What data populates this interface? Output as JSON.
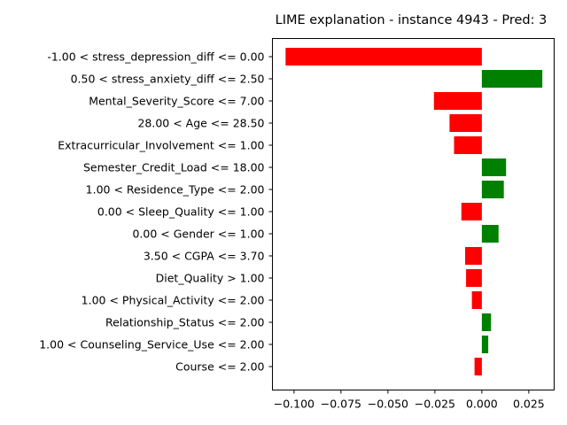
{
  "chart_data": {
    "type": "bar",
    "orientation": "horizontal",
    "title": "LIME explanation - instance 4943 - Pred: 3",
    "xlabel": "",
    "ylabel": "",
    "xlim": [
      -0.1115,
      0.0385
    ],
    "xticks": [
      -0.1,
      -0.075,
      -0.05,
      -0.025,
      0.0,
      0.025
    ],
    "xtick_labels": [
      "−0.100",
      "−0.075",
      "−0.050",
      "−0.025",
      "0.000",
      "0.025"
    ],
    "colors": {
      "positive": "#008000",
      "negative": "#ff0000"
    },
    "categories": [
      "-1.00 < stress_depression_diff <= 0.00",
      "0.50 < stress_anxiety_diff <= 2.50",
      "Mental_Severity_Score <= 7.00",
      "28.00 < Age <= 28.50",
      "Extracurricular_Involvement <= 1.00",
      "Semester_Credit_Load <= 18.00",
      "1.00 < Residence_Type <= 2.00",
      "0.00 < Sleep_Quality <= 1.00",
      "0.00 < Gender <= 1.00",
      "3.50 < CGPA <= 3.70",
      "Diet_Quality > 1.00",
      "1.00 < Physical_Activity <= 2.00",
      "Relationship_Status <= 2.00",
      "1.00 < Counseling_Service_Use <= 2.00",
      "Course <= 2.00"
    ],
    "values": [
      -0.1045,
      0.0322,
      -0.0255,
      -0.0172,
      -0.0148,
      0.0129,
      0.0117,
      -0.0109,
      0.0089,
      -0.0089,
      -0.0084,
      -0.0053,
      0.0049,
      0.0034,
      -0.0039
    ]
  }
}
